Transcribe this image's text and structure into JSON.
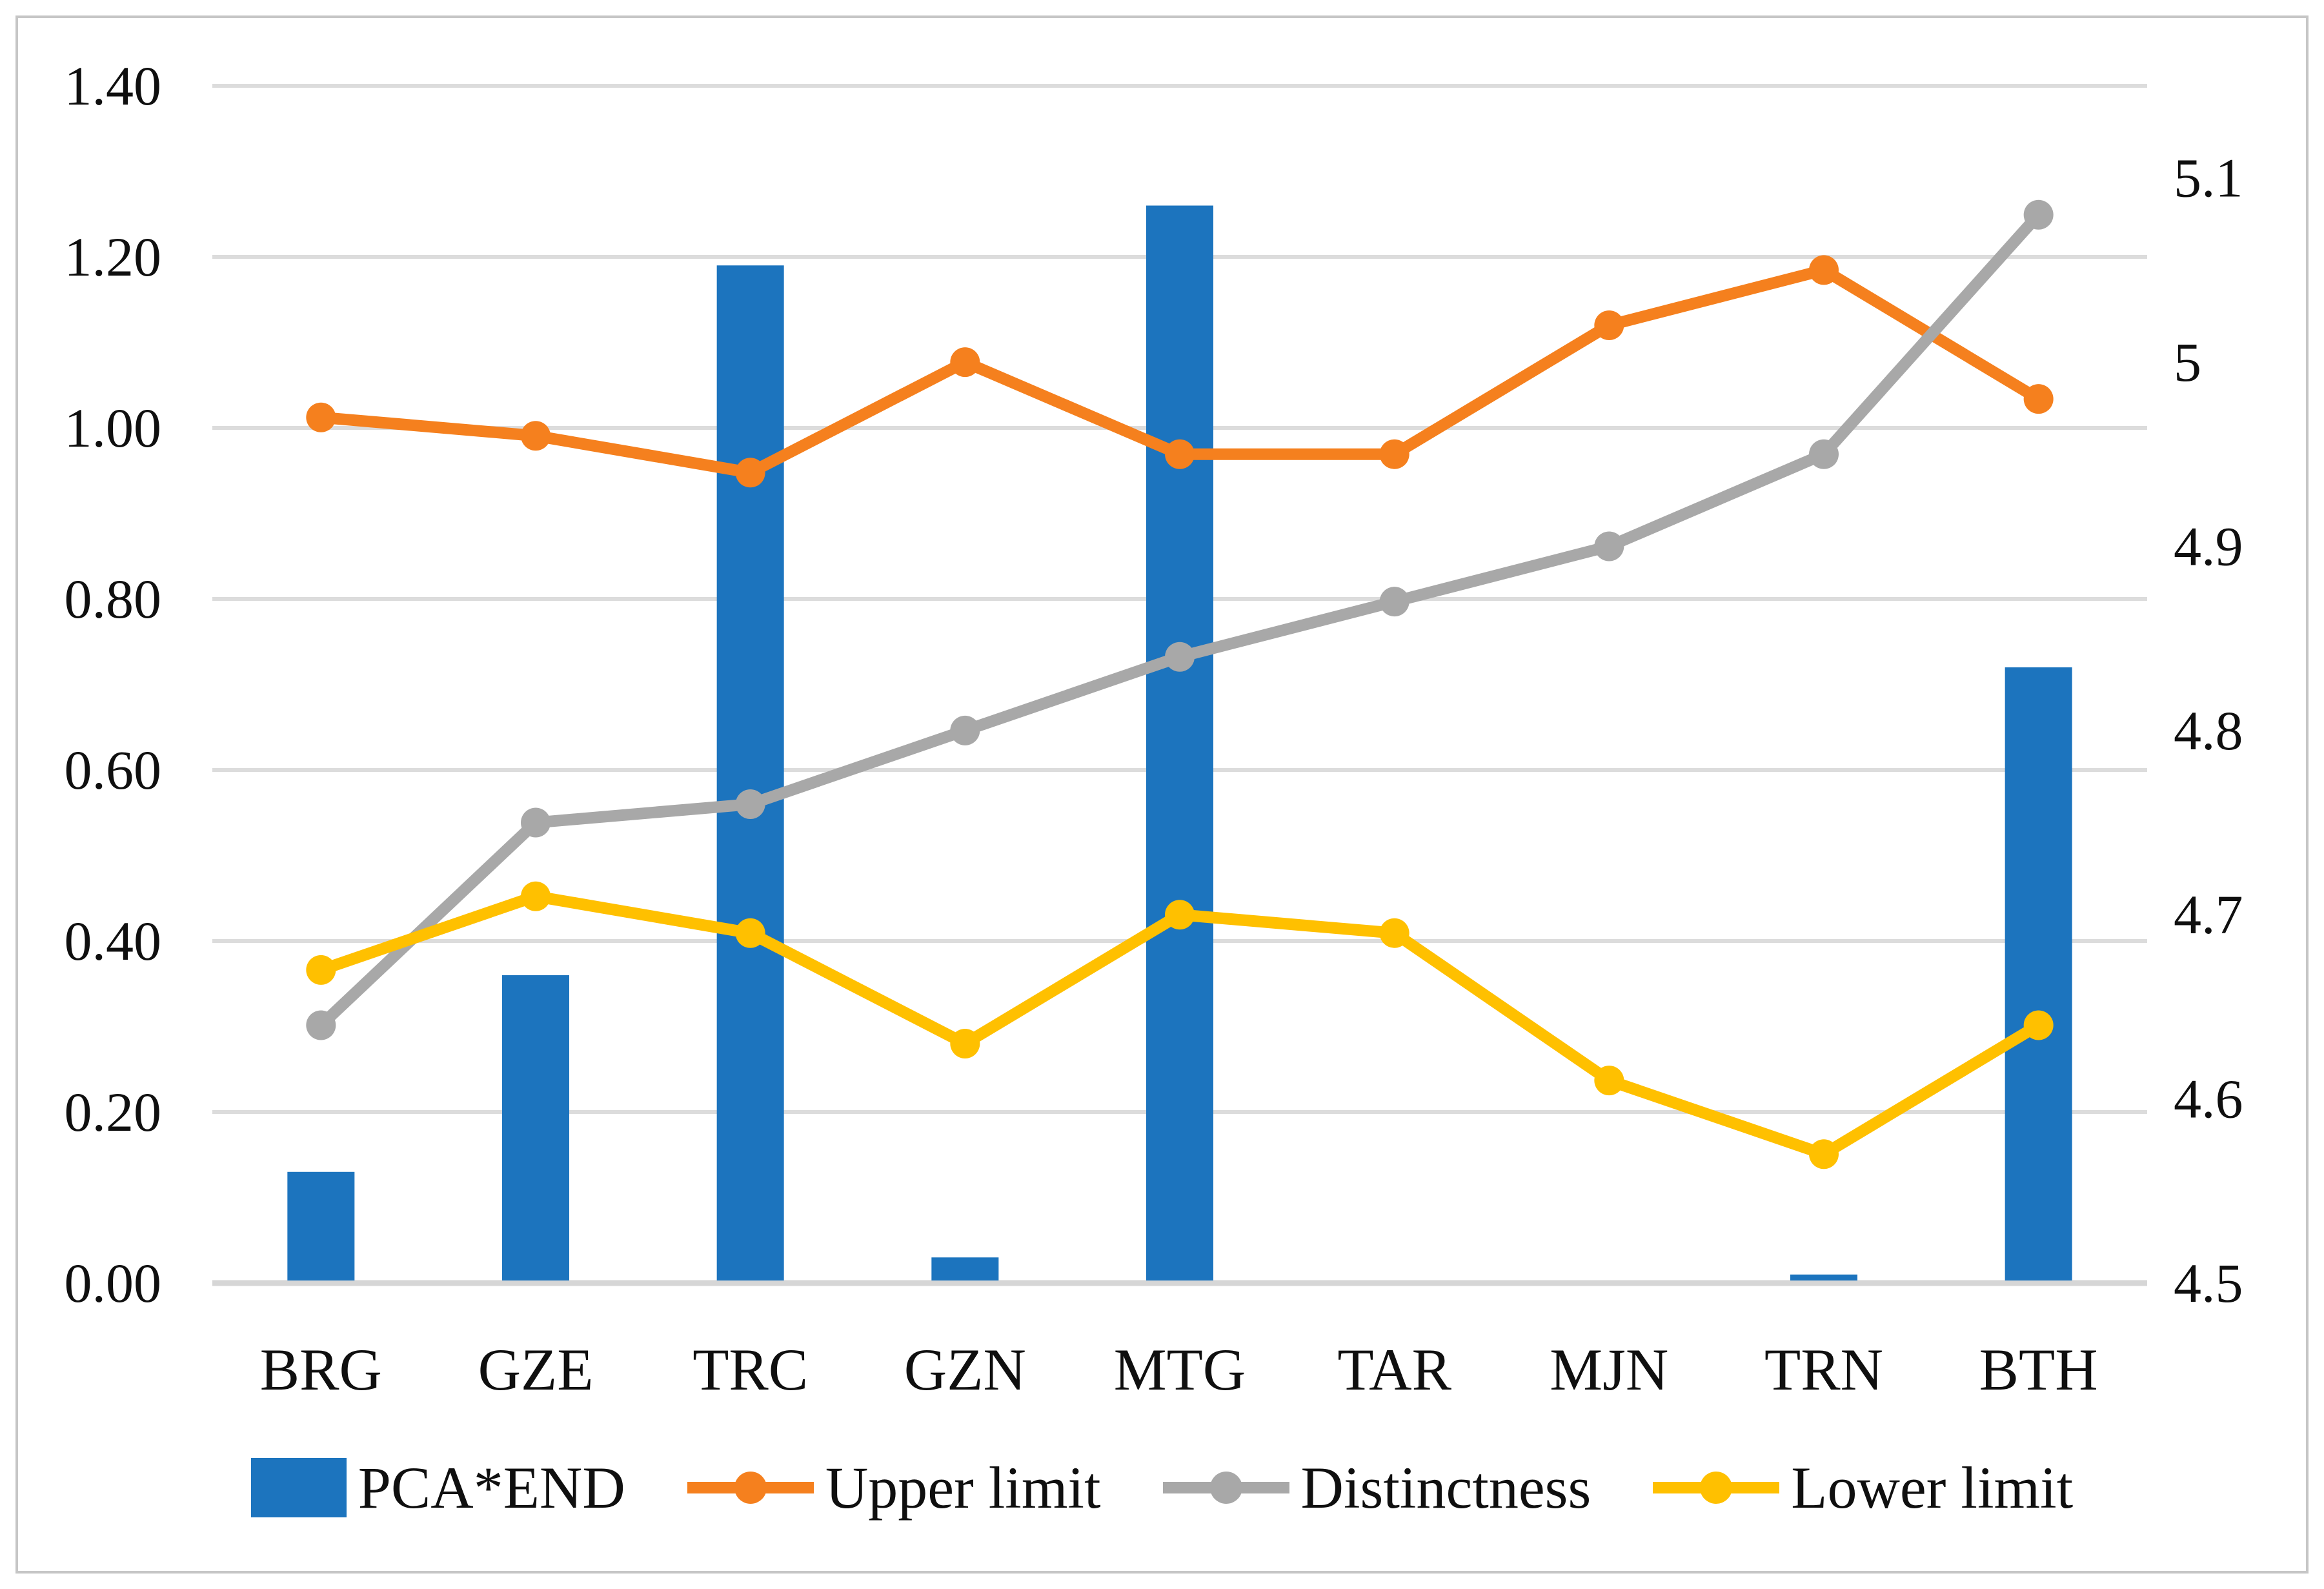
{
  "figure": {
    "background_color": "#ffffff",
    "border_color": "#c6c6c6",
    "gridline_color": "#dcdcdc",
    "axis_line_color": "#d6d6d6",
    "text_color": "#0f0f0f"
  },
  "chart_data": {
    "type": "combo-bar-line",
    "title": "",
    "categories": [
      "BRG",
      "GZE",
      "TRC",
      "GZN",
      "MTG",
      "TAR",
      "MJN",
      "TRN",
      "BTH"
    ],
    "series": [
      {
        "name": "PCA*END",
        "type": "bar",
        "axis": "left",
        "color": "#1c74be",
        "values": [
          0.13,
          0.36,
          1.19,
          0.03,
          1.26,
          0,
          0,
          0.01,
          0.72
        ]
      },
      {
        "name": "Upper limit",
        "type": "line",
        "axis": "right",
        "color": "#f5801e",
        "values": [
          4.97,
          4.96,
          4.94,
          5.0,
          4.95,
          4.95,
          5.02,
          5.05,
          4.98
        ]
      },
      {
        "name": "Distinctness",
        "type": "line",
        "axis": "right",
        "color": "#a8a8a8",
        "values": [
          4.64,
          4.75,
          4.76,
          4.8,
          4.84,
          4.87,
          4.9,
          4.95,
          5.08
        ]
      },
      {
        "name": "Lower limit",
        "type": "line",
        "axis": "right",
        "color": "#ffc000",
        "values": [
          4.67,
          4.71,
          4.69,
          4.63,
          4.7,
          4.69,
          4.61,
          4.57,
          4.64
        ]
      }
    ],
    "left_axis": {
      "min": 0,
      "max": 1.4,
      "tick_values": [
        0,
        0.2,
        0.4,
        0.6,
        0.8,
        1.0,
        1.2,
        1.4
      ],
      "tick_labels": [
        "0.00",
        "0.20",
        "0.40",
        "0.60",
        "0.80",
        "1.00",
        "1.20",
        "1.40"
      ]
    },
    "right_axis": {
      "min": 4.5,
      "max": 5.15,
      "tick_values": [
        4.5,
        4.6,
        4.7,
        4.8,
        4.9,
        5.0,
        5.1
      ],
      "tick_labels": [
        "4.5",
        "4.6",
        "4.7",
        "4.8",
        "4.9",
        "5",
        "5.1"
      ]
    },
    "grid": true,
    "legend_position": "bottom"
  }
}
